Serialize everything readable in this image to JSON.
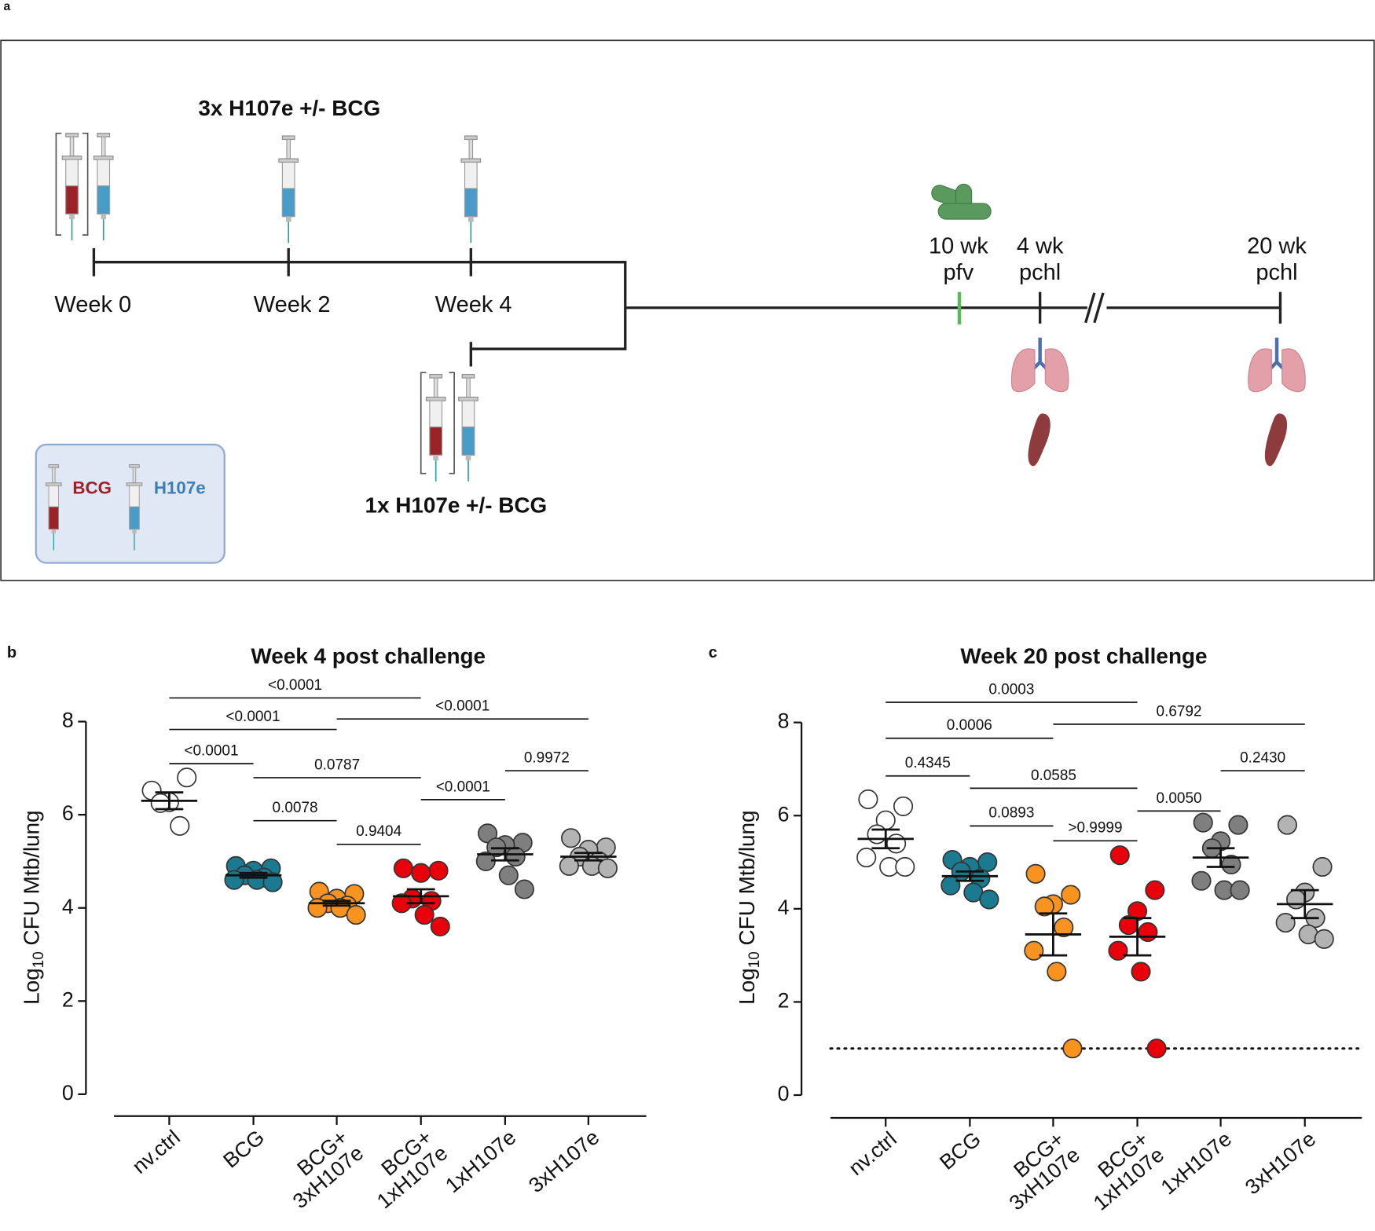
{
  "panel_a": {
    "label": "a",
    "top_title": "3x H107e +/- BCG",
    "bottom_title": "1x H107e +/- BCG",
    "weeks": [
      "Week 0",
      "Week 2",
      "Week 4"
    ],
    "milestones": [
      [
        "10 wk",
        "pfv"
      ],
      [
        "4 wk",
        "pchl"
      ],
      [
        "20 wk",
        "pchl"
      ]
    ],
    "legend": [
      "BCG",
      "H107e"
    ]
  },
  "chart_data": [
    {
      "type": "dot",
      "panel": "b",
      "title": "Week 4 post challenge",
      "ylabel": {
        "base": "Log",
        "sub": "10",
        "rest": " CFU Mtb/lung"
      },
      "categories": [
        [
          "nv.ctrl"
        ],
        [
          "BCG"
        ],
        [
          "BCG+",
          "3xH107e"
        ],
        [
          "BCG+",
          "1xH107e"
        ],
        [
          "1xH107e"
        ],
        [
          "3xH107e"
        ]
      ],
      "values": [
        [
          6.52,
          6.8,
          6.27,
          6.25,
          5.76
        ],
        [
          4.9,
          4.85,
          4.8,
          4.7,
          4.65,
          4.6,
          4.6,
          4.55
        ],
        [
          4.35,
          4.3,
          4.2,
          4.1,
          4.05,
          4.0,
          4.0,
          3.85
        ],
        [
          4.85,
          4.8,
          4.75,
          4.2,
          4.15,
          4.1,
          3.85,
          3.6
        ],
        [
          5.6,
          5.4,
          5.35,
          5.3,
          5.1,
          5.0,
          4.7,
          4.4
        ],
        [
          5.5,
          5.3,
          5.25,
          5.1,
          5.0,
          4.9,
          4.9,
          4.85
        ]
      ],
      "means": [
        6.3,
        4.7,
        4.1,
        4.25,
        5.15,
        5.1
      ],
      "sems": [
        0.18,
        0.05,
        0.05,
        0.15,
        0.13,
        0.08
      ],
      "colors": [
        "#ffffff",
        "#1b7a8f",
        "#f7931e",
        "#e8000b",
        "#7f7f7f",
        "#b3b3b3"
      ],
      "ylim": [
        0,
        8
      ],
      "yticks": [
        0,
        2,
        4,
        6,
        8
      ],
      "comparisons": [
        {
          "groups": [
            0,
            1
          ],
          "label": "<0.0001"
        },
        {
          "groups": [
            0,
            2
          ],
          "label": "<0.0001"
        },
        {
          "groups": [
            0,
            3
          ],
          "label": "<0.0001"
        },
        {
          "groups": [
            2,
            5
          ],
          "label": "<0.0001"
        },
        {
          "groups": [
            1,
            3
          ],
          "label": "0.0787"
        },
        {
          "groups": [
            1,
            2
          ],
          "label": "0.0078"
        },
        {
          "groups": [
            2,
            3
          ],
          "label": "0.9404"
        },
        {
          "groups": [
            3,
            4
          ],
          "label": "<0.0001"
        },
        {
          "groups": [
            4,
            5
          ],
          "label": "0.9972"
        }
      ]
    },
    {
      "type": "dot",
      "panel": "c",
      "title": "Week 20 post challenge",
      "ylabel": {
        "base": "Log",
        "sub": "10",
        "rest": " CFU Mtb/lung"
      },
      "categories": [
        [
          "nv.ctrl"
        ],
        [
          "BCG"
        ],
        [
          "BCG+",
          "3xH107e"
        ],
        [
          "BCG+",
          "1xH107e"
        ],
        [
          "1xH107e"
        ],
        [
          "3xH107e"
        ]
      ],
      "values": [
        [
          6.35,
          6.2,
          5.9,
          5.6,
          5.4,
          5.1,
          4.9,
          4.9
        ],
        [
          5.05,
          5.0,
          4.9,
          4.8,
          4.65,
          4.5,
          4.35,
          4.2
        ],
        [
          4.75,
          4.3,
          4.1,
          4.05,
          3.6,
          3.1,
          2.65,
          1.0
        ],
        [
          5.15,
          4.4,
          3.95,
          3.65,
          3.5,
          3.1,
          2.65,
          1.0
        ],
        [
          5.85,
          5.8,
          5.45,
          5.3,
          4.95,
          4.6,
          4.4,
          4.4
        ],
        [
          5.8,
          4.9,
          4.35,
          4.2,
          3.8,
          3.7,
          3.45,
          3.35
        ]
      ],
      "means": [
        5.5,
        4.7,
        3.45,
        3.4,
        5.1,
        4.1
      ],
      "sems": [
        0.2,
        0.1,
        0.45,
        0.4,
        0.2,
        0.3
      ],
      "colors": [
        "#ffffff",
        "#1b7a8f",
        "#f7931e",
        "#e8000b",
        "#7f7f7f",
        "#b3b3b3"
      ],
      "ylim": [
        0,
        8
      ],
      "yticks": [
        0,
        2,
        4,
        6,
        8
      ],
      "reference_line": 1.0,
      "comparisons": [
        {
          "groups": [
            0,
            1
          ],
          "label": "0.4345"
        },
        {
          "groups": [
            0,
            2
          ],
          "label": "0.0006"
        },
        {
          "groups": [
            0,
            3
          ],
          "label": "0.0003"
        },
        {
          "groups": [
            2,
            5
          ],
          "label": "0.6792"
        },
        {
          "groups": [
            1,
            3
          ],
          "label": "0.0585"
        },
        {
          "groups": [
            1,
            2
          ],
          "label": "0.0893"
        },
        {
          "groups": [
            2,
            3
          ],
          "label": ">0.9999"
        },
        {
          "groups": [
            3,
            4
          ],
          "label": "0.0050"
        },
        {
          "groups": [
            4,
            5
          ],
          "label": "0.2430"
        }
      ]
    }
  ]
}
